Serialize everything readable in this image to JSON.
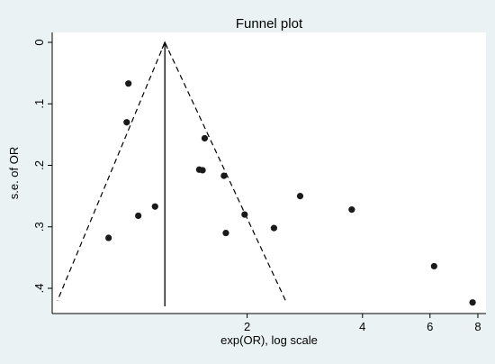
{
  "chart_data": {
    "type": "scatter",
    "title": "Funnel plot",
    "xlabel": "exp(OR), log scale",
    "ylabel": "s.e. of OR",
    "x_scale": "log",
    "y_axis_reversed": true,
    "xlim": [
      0.62,
      8.4
    ],
    "ylim": [
      0,
      0.435
    ],
    "x_ticks": [
      {
        "value": 2,
        "label": "2"
      },
      {
        "value": 4,
        "label": "4"
      },
      {
        "value": 6,
        "label": "6"
      },
      {
        "value": 8,
        "label": "8"
      }
    ],
    "y_ticks": [
      {
        "value": 0,
        "label": "0"
      },
      {
        "value": 0.1,
        "label": ".1"
      },
      {
        "value": 0.2,
        "label": ".2"
      },
      {
        "value": 0.3,
        "label": ".3"
      },
      {
        "value": 0.4,
        "label": ".4"
      }
    ],
    "pooled_estimate": 1.22,
    "funnel_limits": {
      "apex": {
        "x": 1.22,
        "y": 0
      },
      "lower_left": {
        "x": 0.64,
        "y": 0.42
      },
      "lower_right": {
        "x": 2.52,
        "y": 0.42
      }
    },
    "points": [
      {
        "x": 0.98,
        "y": 0.067
      },
      {
        "x": 0.97,
        "y": 0.13
      },
      {
        "x": 1.55,
        "y": 0.156
      },
      {
        "x": 1.5,
        "y": 0.207
      },
      {
        "x": 1.53,
        "y": 0.208
      },
      {
        "x": 1.74,
        "y": 0.217
      },
      {
        "x": 2.75,
        "y": 0.25
      },
      {
        "x": 1.15,
        "y": 0.267
      },
      {
        "x": 3.75,
        "y": 0.272
      },
      {
        "x": 1.04,
        "y": 0.282
      },
      {
        "x": 1.97,
        "y": 0.28
      },
      {
        "x": 2.35,
        "y": 0.302
      },
      {
        "x": 1.76,
        "y": 0.31
      },
      {
        "x": 0.87,
        "y": 0.318
      },
      {
        "x": 6.15,
        "y": 0.364
      },
      {
        "x": 7.75,
        "y": 0.423
      }
    ],
    "grid": false,
    "legend": "none"
  },
  "colors": {
    "figure_background": "#eaf2f3",
    "plot_background": "#ffffff",
    "marker": "#1a1a1a",
    "lines": "#000000"
  }
}
